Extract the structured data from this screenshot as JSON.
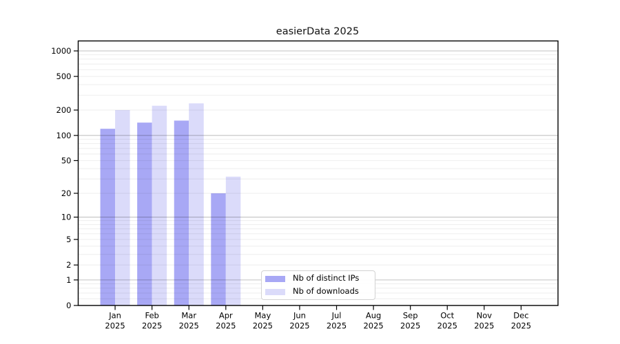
{
  "chart_data": {
    "type": "bar",
    "title": "easierData 2025",
    "categories": [
      "Jan",
      "Feb",
      "Mar",
      "Apr",
      "May",
      "Jun",
      "Jul",
      "Aug",
      "Sep",
      "Oct",
      "Nov",
      "Dec"
    ],
    "category_year": "2025",
    "series": [
      {
        "name": "Nb of distinct IPs",
        "color": "#a8a8f5",
        "values": [
          120,
          142,
          150,
          20,
          0,
          0,
          0,
          0,
          0,
          0,
          0,
          0
        ]
      },
      {
        "name": "Nb of downloads",
        "color": "#dbdbfa",
        "values": [
          200,
          225,
          240,
          32,
          0,
          0,
          0,
          0,
          0,
          0,
          0,
          0
        ]
      }
    ],
    "yscale": "symlog",
    "yticks": [
      0,
      1,
      2,
      5,
      10,
      20,
      50,
      100,
      200,
      500,
      1000
    ],
    "ylim": [
      0,
      1300
    ],
    "grid": true,
    "legend_position": "lower-center-inside"
  },
  "colors": {
    "background": "#ffffff",
    "spine": "#000000",
    "tick_text": "#000000",
    "title_text": "#111111",
    "grid_decade": "#c4c4c4",
    "grid_minor": "#ededed",
    "legend_border": "#d2d2d2"
  }
}
